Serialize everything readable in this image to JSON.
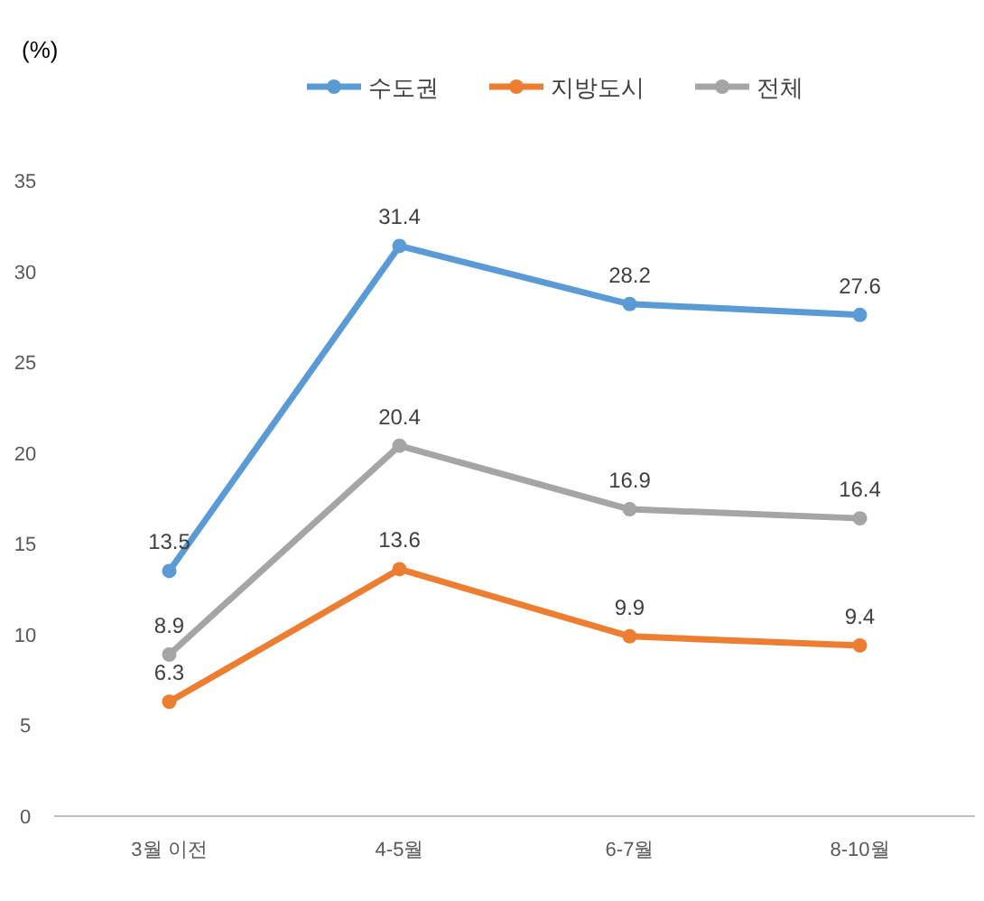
{
  "chart_data": {
    "type": "line",
    "ylabel": "(%)",
    "categories": [
      "3월 이전",
      "4-5월",
      "6-7월",
      "8-10월"
    ],
    "series": [
      {
        "name": "수도권",
        "color": "#5b9bd5",
        "values": [
          13.5,
          31.4,
          28.2,
          27.6
        ]
      },
      {
        "name": "지방도시",
        "color": "#ed7d31",
        "values": [
          6.3,
          13.6,
          9.9,
          9.4
        ]
      },
      {
        "name": "전체",
        "color": "#a5a5a5",
        "values": [
          8.9,
          20.4,
          16.9,
          16.4
        ]
      }
    ],
    "ylim": [
      0,
      35
    ],
    "yticks": [
      0,
      5,
      10,
      15,
      20,
      25,
      30,
      35
    ],
    "grid": false,
    "legend": "top",
    "marker": "circle",
    "line_style": "solid",
    "data_labels": true
  }
}
